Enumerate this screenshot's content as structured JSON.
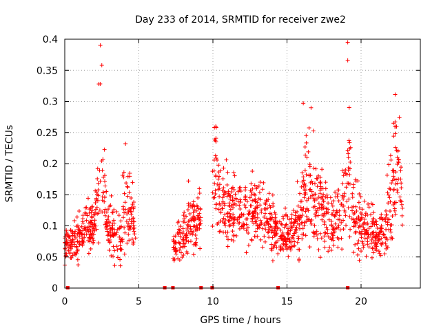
{
  "chart_data": {
    "type": "scatter",
    "title": "Day 233 of 2014, SRMTID for receiver zwe2",
    "xlabel": "GPS time / hours",
    "ylabel": "SRMTID / TECUs",
    "xlim": [
      0,
      24
    ],
    "ylim": [
      0,
      0.4
    ],
    "xticks": [
      0,
      5,
      10,
      15,
      20
    ],
    "xtick_labels": [
      "0",
      "5",
      "10",
      "15",
      "20"
    ],
    "yticks": [
      0,
      0.05,
      0.1,
      0.15,
      0.2,
      0.25,
      0.3,
      0.35,
      0.4
    ],
    "ytick_labels": [
      "0",
      "0.05",
      "0.1",
      "0.15",
      "0.2",
      "0.25",
      "0.3",
      "0.35",
      "0.4"
    ],
    "grid": true,
    "marker": "+",
    "marker_color": "#ff0000",
    "data_ranges_hours": [
      [
        0,
        4.8
      ],
      [
        7.3,
        9.2
      ],
      [
        9.95,
        14.4
      ],
      [
        14.5,
        22.8
      ]
    ],
    "zero_markers_x": [
      0.2,
      6.75,
      7.3,
      9.2,
      9.95,
      14.4,
      19.1
    ],
    "notable_peaks": [
      {
        "x": 2.4,
        "y": 0.39
      },
      {
        "x": 2.5,
        "y": 0.358
      },
      {
        "x": 2.3,
        "y": 0.328
      },
      {
        "x": 4.1,
        "y": 0.232
      },
      {
        "x": 10.1,
        "y": 0.258
      },
      {
        "x": 16.1,
        "y": 0.297
      },
      {
        "x": 19.1,
        "y": 0.395
      },
      {
        "x": 19.1,
        "y": 0.366
      },
      {
        "x": 19.2,
        "y": 0.29
      },
      {
        "x": 22.3,
        "y": 0.311
      }
    ],
    "envelope_hours": [
      0,
      0.5,
      1,
      1.5,
      2,
      2.2,
      2.4,
      2.6,
      3,
      3.5,
      3.8,
      4.1,
      4.5,
      4.8,
      7.3,
      7.6,
      8,
      8.4,
      8.8,
      9.2,
      9.95,
      10.1,
      10.5,
      11,
      11.5,
      12,
      12.5,
      13,
      13.5,
      14,
      14.4,
      14.5,
      15,
      15.5,
      15.9,
      16.2,
      16.6,
      17,
      17.5,
      18,
      18.5,
      18.8,
      19.1,
      19.4,
      19.8,
      20.5,
      21,
      21.5,
      22,
      22.3,
      22.6,
      22.8
    ],
    "envelope_center": [
      0.065,
      0.075,
      0.085,
      0.09,
      0.095,
      0.13,
      0.2,
      0.15,
      0.09,
      0.085,
      0.08,
      0.13,
      0.12,
      0.08,
      0.065,
      0.075,
      0.085,
      0.095,
      0.1,
      0.11,
      0.15,
      0.19,
      0.14,
      0.12,
      0.12,
      0.115,
      0.12,
      0.12,
      0.11,
      0.105,
      0.09,
      0.085,
      0.08,
      0.09,
      0.11,
      0.17,
      0.16,
      0.13,
      0.12,
      0.11,
      0.115,
      0.14,
      0.2,
      0.13,
      0.1,
      0.095,
      0.085,
      0.085,
      0.12,
      0.2,
      0.17,
      0.11
    ],
    "envelope_spread": [
      0.015,
      0.02,
      0.025,
      0.025,
      0.03,
      0.05,
      0.08,
      0.05,
      0.025,
      0.03,
      0.03,
      0.05,
      0.04,
      0.02,
      0.02,
      0.025,
      0.03,
      0.03,
      0.03,
      0.035,
      0.05,
      0.05,
      0.045,
      0.04,
      0.04,
      0.04,
      0.04,
      0.04,
      0.035,
      0.035,
      0.02,
      0.025,
      0.025,
      0.03,
      0.04,
      0.06,
      0.06,
      0.05,
      0.04,
      0.035,
      0.04,
      0.05,
      0.07,
      0.04,
      0.035,
      0.03,
      0.03,
      0.03,
      0.05,
      0.07,
      0.06,
      0.03
    ],
    "point_count": 1500
  }
}
